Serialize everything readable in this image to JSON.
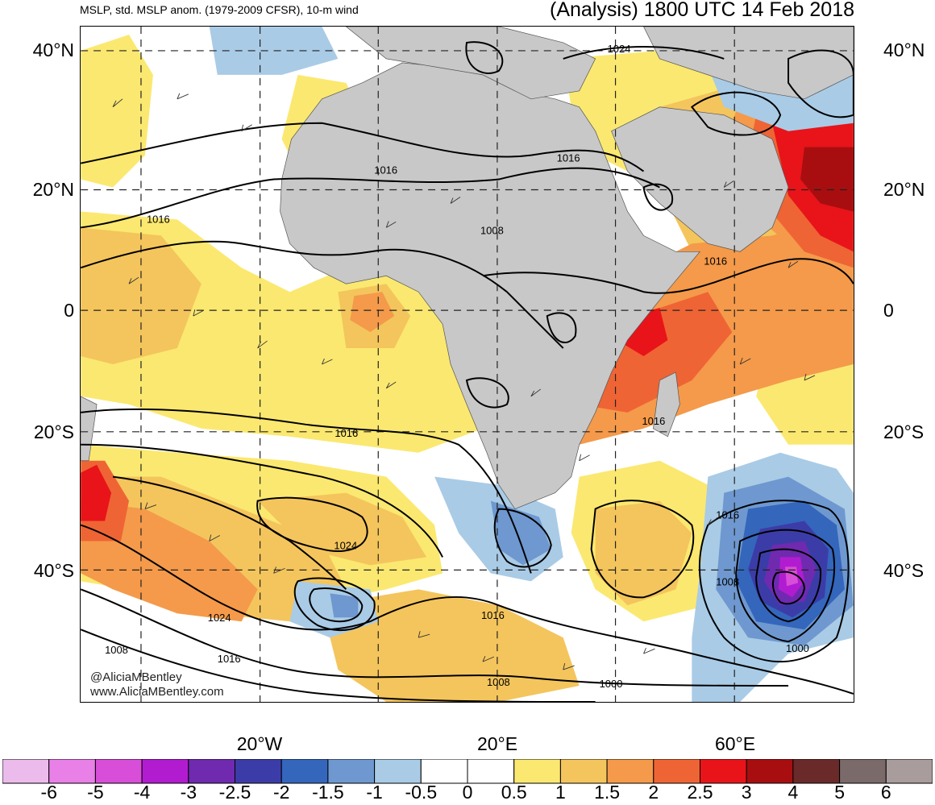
{
  "header": {
    "left": "MSLP, std. MSLP anom. (1979-2009 CFSR), 10-m wind",
    "right": "(Analysis) 1800 UTC 14 Feb 2018"
  },
  "lat_labels": [
    "40°N",
    "20°N",
    "0",
    "20°S",
    "40°S"
  ],
  "lon_labels": [
    "20°W",
    "20°E",
    "60°E"
  ],
  "isobar_labels": [
    "1024",
    "1016",
    "1016",
    "1016",
    "1008",
    "1016",
    "1016",
    "1016",
    "1024",
    "1016",
    "1024",
    "1008",
    "1016",
    "1008",
    "1016",
    "1000",
    "1008",
    "1000"
  ],
  "credits": [
    "@AliciaMBentley",
    "www.AliciaMBentley.com"
  ],
  "colorbar": {
    "colors": [
      "#ebbbeb",
      "#e880e8",
      "#d84ed8",
      "#b21cd0",
      "#6f2ab0",
      "#3c3ca8",
      "#3466bc",
      "#6e98cf",
      "#a9cbe6",
      "#ffffff",
      "#ffffff",
      "#fbe870",
      "#f4c55c",
      "#f49a4a",
      "#ef6434",
      "#e8141a",
      "#a80e10",
      "#6b2a2a",
      "#7a6a6a",
      "#a89c9c"
    ],
    "labels": [
      "-6",
      "-5",
      "-4",
      "-3",
      "-2.5",
      "-2",
      "-1.5",
      "-1",
      "-0.5",
      "0",
      "0.5",
      "1",
      "1.5",
      "2",
      "2.5",
      "3",
      "4",
      "5",
      "6"
    ]
  }
}
